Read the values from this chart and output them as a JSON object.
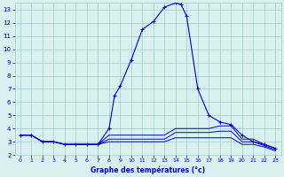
{
  "title": "Graphe des températures (°c)",
  "bg_color": "#d8f0f0",
  "grid_color": "#a0c8c8",
  "line_color": "#0000cc",
  "xlim": [
    -0.5,
    23.5
  ],
  "ylim": [
    2,
    13.5
  ],
  "xticks": [
    0,
    1,
    2,
    3,
    4,
    5,
    6,
    7,
    8,
    9,
    10,
    11,
    12,
    13,
    14,
    15,
    16,
    17,
    18,
    19,
    20,
    21,
    22,
    23
  ],
  "yticks": [
    2,
    3,
    4,
    5,
    6,
    7,
    8,
    9,
    10,
    11,
    12,
    13
  ],
  "main_curve": {
    "x": [
      0,
      1,
      2,
      3,
      4,
      5,
      6,
      7,
      8,
      8.5,
      9,
      10,
      11,
      12,
      13,
      14,
      14.5,
      15,
      16,
      17,
      18,
      19,
      20,
      21,
      22,
      23
    ],
    "y": [
      3.5,
      3.5,
      3.0,
      3.0,
      2.8,
      2.8,
      2.8,
      2.8,
      4.0,
      6.5,
      7.2,
      9.2,
      11.5,
      12.1,
      13.2,
      13.5,
      13.4,
      12.5,
      7.0,
      5.0,
      4.5,
      4.3,
      3.5,
      3.0,
      2.8,
      2.5
    ]
  },
  "flat_lines": [
    {
      "x": [
        0,
        1,
        2,
        3,
        4,
        5,
        6,
        7,
        8,
        9,
        10,
        11,
        12,
        13,
        14,
        15,
        16,
        17,
        18,
        19,
        20,
        21,
        22,
        23
      ],
      "y": [
        3.5,
        3.5,
        3.0,
        3.0,
        2.8,
        2.8,
        2.8,
        2.8,
        3.5,
        3.5,
        3.5,
        3.5,
        3.5,
        3.5,
        4.0,
        4.0,
        4.0,
        4.0,
        4.2,
        4.2,
        3.2,
        3.2,
        2.8,
        2.5
      ]
    },
    {
      "x": [
        0,
        1,
        2,
        3,
        4,
        5,
        6,
        7,
        8,
        9,
        10,
        11,
        12,
        13,
        14,
        15,
        16,
        17,
        18,
        19,
        20,
        21,
        22,
        23
      ],
      "y": [
        3.5,
        3.5,
        3.0,
        3.0,
        2.8,
        2.8,
        2.8,
        2.8,
        3.2,
        3.2,
        3.2,
        3.2,
        3.2,
        3.2,
        3.7,
        3.7,
        3.7,
        3.7,
        3.8,
        3.8,
        3.0,
        3.0,
        2.7,
        2.4
      ]
    },
    {
      "x": [
        0,
        1,
        2,
        3,
        4,
        5,
        6,
        7,
        8,
        9,
        10,
        11,
        12,
        13,
        14,
        15,
        16,
        17,
        18,
        19,
        20,
        21,
        22,
        23
      ],
      "y": [
        3.5,
        3.5,
        3.0,
        3.0,
        2.8,
        2.8,
        2.8,
        2.8,
        3.0,
        3.0,
        3.0,
        3.0,
        3.0,
        3.0,
        3.3,
        3.3,
        3.3,
        3.3,
        3.3,
        3.3,
        2.8,
        2.8,
        2.6,
        2.3
      ]
    }
  ]
}
